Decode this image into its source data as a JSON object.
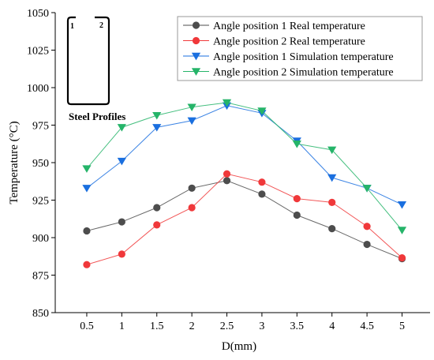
{
  "chart_data": {
    "type": "line",
    "title": "",
    "xlabel": "D(mm)",
    "ylabel": "Temperature (°C)",
    "x": [
      0.5,
      1,
      1.5,
      2,
      2.5,
      3,
      3.5,
      4,
      4.5,
      5
    ],
    "x_tick_labels": [
      "0.5",
      "1",
      "1.5",
      "2",
      "2.5",
      "3",
      "3.5",
      "4",
      "4.5",
      "5"
    ],
    "xlim": [
      0.05,
      5.4
    ],
    "ylim": [
      850,
      1050
    ],
    "y_ticks": [
      850,
      875,
      900,
      925,
      950,
      975,
      1000,
      1025,
      1050
    ],
    "grid": false,
    "legend_position": "top-right",
    "series": [
      {
        "name": "Angle position 1 Real temperature",
        "color": "#4d4d4d",
        "marker": "circle",
        "values": [
          904.5,
          910.5,
          920,
          933,
          938,
          929,
          915,
          906,
          895.5,
          886
        ]
      },
      {
        "name": "Angle position 2 Real temperature",
        "color": "#f0383a",
        "marker": "circle",
        "values": [
          882,
          889,
          908.5,
          920,
          942.5,
          937,
          926,
          923.5,
          907.5,
          886.5
        ]
      },
      {
        "name": "Angle position 1 Simulation temperature",
        "color": "#1a6fdf",
        "marker": "triangle-down",
        "values": [
          933,
          951,
          973.5,
          978,
          988,
          983,
          964.5,
          940,
          933,
          922
        ]
      },
      {
        "name": "Angle position 2 Simulation temperature",
        "color": "#25b469",
        "marker": "triangle-down",
        "values": [
          946,
          973.5,
          981.5,
          987,
          990,
          984.5,
          962.5,
          958.5,
          933,
          905
        ]
      }
    ],
    "inset": {
      "label_1": "1",
      "label_2": "2",
      "caption": "Steel Profiles"
    }
  }
}
